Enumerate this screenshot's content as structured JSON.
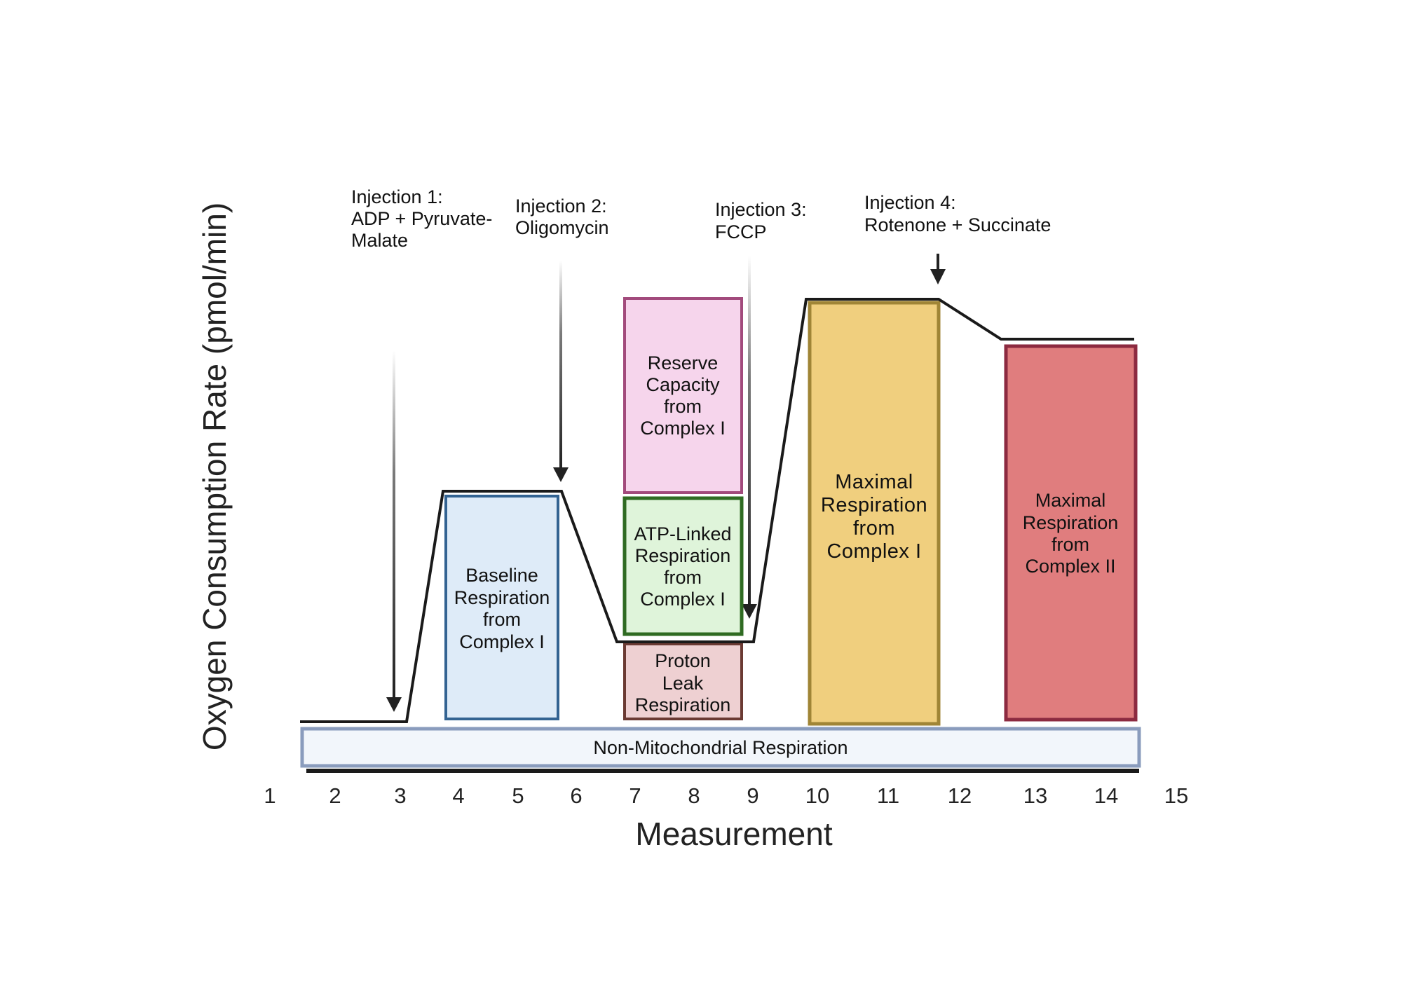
{
  "axes": {
    "y_title": "Oxygen Consumption Rate (pmol/min)",
    "x_title": "Measurement",
    "x_ticks": [
      "1",
      "2",
      "3",
      "4",
      "5",
      "6",
      "7",
      "8",
      "9",
      "10",
      "11",
      "12",
      "13",
      "14",
      "15"
    ]
  },
  "injections": [
    {
      "lines": [
        "Injection 1:",
        "ADP + Pyruvate-",
        "Malate"
      ]
    },
    {
      "lines": [
        "Injection 2:",
        "Oligomycin"
      ]
    },
    {
      "lines": [
        "Injection 3:",
        "FCCP"
      ]
    },
    {
      "lines": [
        "Injection 4:",
        "Rotenone + Succinate"
      ]
    }
  ],
  "boxes": {
    "baseline": {
      "lines": [
        "Baseline",
        "Respiration",
        "from",
        "Complex I"
      ],
      "fill": "#deebf8",
      "stroke": "#336392"
    },
    "reserve": {
      "lines": [
        "Reserve",
        "Capacity",
        "from",
        "Complex I"
      ],
      "fill": "#f6d5ec",
      "stroke": "#a24a7c"
    },
    "atp_linked": {
      "lines": [
        "ATP-Linked",
        "Respiration",
        "from",
        "Complex I"
      ],
      "fill": "#dff4da",
      "stroke": "#2f6b22"
    },
    "proton_leak": {
      "lines": [
        "Proton",
        "Leak",
        "Respiration"
      ],
      "fill": "#eed0d2",
      "stroke": "#6b3a33"
    },
    "max_complex1": {
      "lines": [
        "Maximal",
        "Respiration",
        "from",
        "Complex I"
      ],
      "fill": "#f0cf7e",
      "stroke": "#a08536"
    },
    "max_complex2": {
      "lines": [
        "Maximal",
        "Respiration",
        "from",
        "Complex II"
      ],
      "fill": "#e07d7e",
      "stroke": "#8c2a40"
    }
  },
  "non_mito": {
    "label": "Non-Mitochondrial Respiration",
    "fill": "#f2f6fb",
    "stroke": "#8a9cbd"
  }
}
